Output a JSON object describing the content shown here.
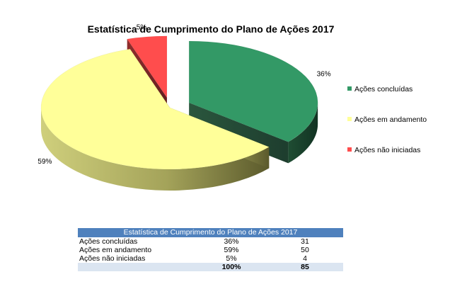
{
  "chart_data": {
    "type": "pie",
    "title": "Estatística de Cumprimento do Plano de Ações 2017",
    "categories": [
      "Ações concluídas",
      "Ações em andamento",
      "Ações não iniciadas"
    ],
    "values": [
      36,
      59,
      5
    ],
    "value_labels": [
      "36%",
      "59%",
      "5%"
    ],
    "colors": [
      "#339966",
      "#ffff99",
      "#ff4d4d"
    ],
    "legend_position": "right",
    "exploded": true
  },
  "table": {
    "title": "Estatística de Cumprimento do Plano de Ações 2017",
    "rows": [
      {
        "label": "Ações concluídas",
        "percent": "36%",
        "count": "31"
      },
      {
        "label": "Ações em andamento",
        "percent": "59%",
        "count": "50"
      },
      {
        "label": "Ações não iniciadas",
        "percent": "5%",
        "count": "4"
      }
    ],
    "total": {
      "label": "",
      "percent": "100%",
      "count": "85"
    }
  }
}
